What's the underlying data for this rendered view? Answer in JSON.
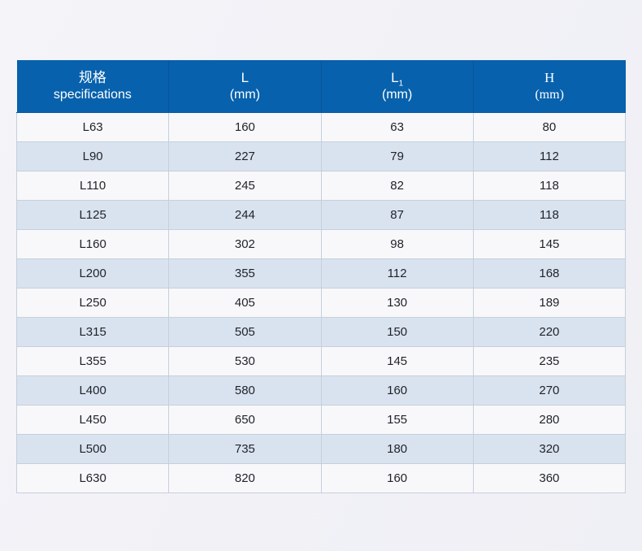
{
  "chart_data": {
    "type": "table",
    "title": "",
    "columns": [
      "规格 specifications",
      "L (mm)",
      "L1 (mm)",
      "H (mm)"
    ],
    "rows": [
      [
        "L63",
        160,
        63,
        80
      ],
      [
        "L90",
        227,
        79,
        112
      ],
      [
        "L110",
        245,
        82,
        118
      ],
      [
        "L125",
        244,
        87,
        118
      ],
      [
        "L160",
        302,
        98,
        145
      ],
      [
        "L200",
        355,
        112,
        168
      ],
      [
        "L250",
        405,
        130,
        189
      ],
      [
        "L315",
        505,
        150,
        220
      ],
      [
        "L355",
        530,
        145,
        235
      ],
      [
        "L400",
        580,
        160,
        270
      ],
      [
        "L450",
        650,
        155,
        280
      ],
      [
        "L500",
        735,
        180,
        320
      ],
      [
        "L630",
        820,
        160,
        360
      ]
    ]
  },
  "table": {
    "header": {
      "spec": {
        "zh": "规格",
        "en": "specifications"
      },
      "l": {
        "symbol": "L",
        "unit": "(mm)"
      },
      "l1": {
        "symbol": "L",
        "subscript": "1",
        "unit": "(mm)"
      },
      "h": {
        "symbol": "H",
        "unit": "(mm)"
      }
    },
    "rows": [
      [
        "L63",
        "160",
        "63",
        "80"
      ],
      [
        "L90",
        "227",
        "79",
        "112"
      ],
      [
        "L110",
        "245",
        "82",
        "118"
      ],
      [
        "L125",
        "244",
        "87",
        "118"
      ],
      [
        "L160",
        "302",
        "98",
        "145"
      ],
      [
        "L200",
        "355",
        "112",
        "168"
      ],
      [
        "L250",
        "405",
        "130",
        "189"
      ],
      [
        "L315",
        "505",
        "150",
        "220"
      ],
      [
        "L355",
        "530",
        "145",
        "235"
      ],
      [
        "L400",
        "580",
        "160",
        "270"
      ],
      [
        "L450",
        "650",
        "155",
        "280"
      ],
      [
        "L500",
        "735",
        "180",
        "320"
      ],
      [
        "L630",
        "820",
        "160",
        "360"
      ]
    ]
  },
  "colors": {
    "page_background": "#f1f1f6",
    "header_background": "#0761ad",
    "header_text": "#ffffff",
    "row_light": "#f8f8fb",
    "row_blue": "#d9e3f0",
    "cell_border": "#c7cfda",
    "body_text": "#1f2228"
  }
}
